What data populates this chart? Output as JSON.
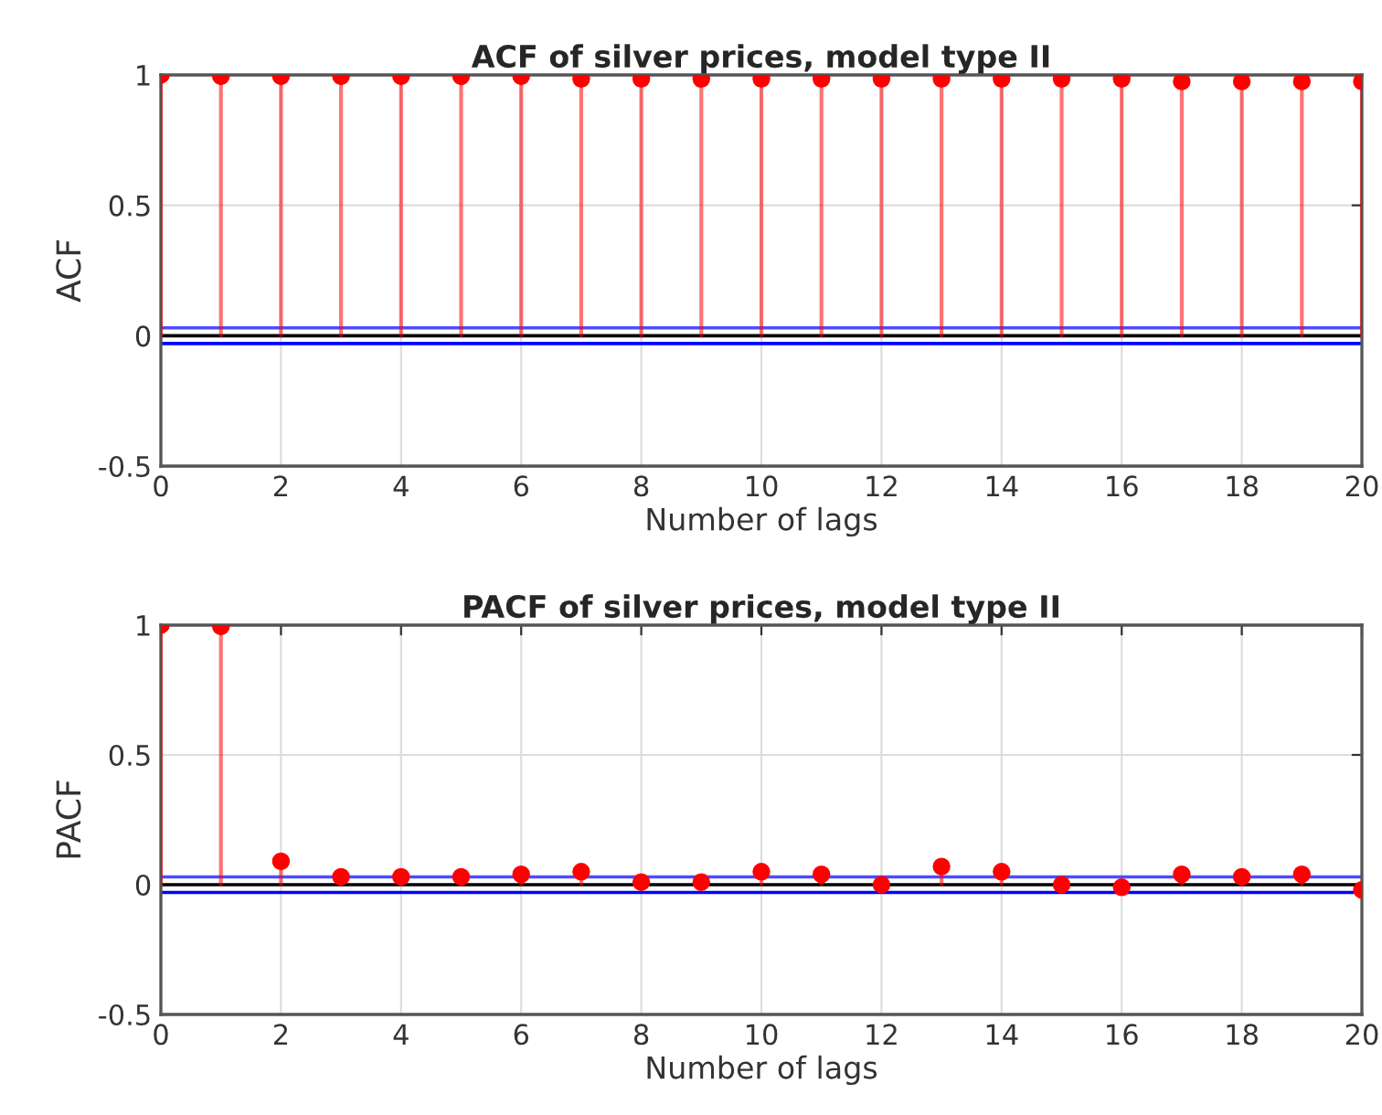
{
  "chart_data": [
    {
      "type": "lollipop",
      "title": "ACF of silver prices, model type II",
      "xlabel": "Number of lags",
      "ylabel": "ACF",
      "x": [
        0,
        1,
        2,
        3,
        4,
        5,
        6,
        7,
        8,
        9,
        10,
        11,
        12,
        13,
        14,
        15,
        16,
        17,
        18,
        19,
        20
      ],
      "series": [
        {
          "color": "#ff0000",
          "values": [
            1.0,
            0.995,
            0.995,
            0.995,
            0.995,
            0.995,
            0.995,
            0.985,
            0.985,
            0.985,
            0.985,
            0.985,
            0.985,
            0.985,
            0.985,
            0.985,
            0.985,
            0.975,
            0.975,
            0.975,
            0.975
          ]
        }
      ],
      "xlim": [
        0,
        20
      ],
      "ylim": [
        -0.5,
        1
      ],
      "xticks": [
        0,
        2,
        4,
        6,
        8,
        10,
        12,
        14,
        16,
        18,
        20
      ],
      "yticks": [
        -0.5,
        0,
        0.5,
        1
      ],
      "ref_lines": [
        {
          "axis": "y",
          "value": 0.03,
          "color": "#4d4dff"
        },
        {
          "axis": "y",
          "value": -0.03,
          "color": "#0000ff"
        },
        {
          "axis": "y",
          "value": 0,
          "color": "#000000"
        }
      ],
      "grid": true,
      "marker": "circle",
      "legend": false
    },
    {
      "type": "lollipop",
      "title": "PACF of silver prices, model type II",
      "xlabel": "Number of lags",
      "ylabel": "PACF",
      "x": [
        0,
        1,
        2,
        3,
        4,
        5,
        6,
        7,
        8,
        9,
        10,
        11,
        12,
        13,
        14,
        15,
        16,
        17,
        18,
        19,
        20
      ],
      "series": [
        {
          "color": "#ff0000",
          "values": [
            1.0,
            0.995,
            0.09,
            0.03,
            0.03,
            0.03,
            0.04,
            0.05,
            0.01,
            0.01,
            0.05,
            0.04,
            0.0,
            0.07,
            0.05,
            0.0,
            -0.01,
            0.04,
            0.03,
            0.04,
            -0.02
          ]
        }
      ],
      "xlim": [
        0,
        20
      ],
      "ylim": [
        -0.5,
        1
      ],
      "xticks": [
        0,
        2,
        4,
        6,
        8,
        10,
        12,
        14,
        16,
        18,
        20
      ],
      "yticks": [
        -0.5,
        0,
        0.5,
        1
      ],
      "ref_lines": [
        {
          "axis": "y",
          "value": 0.03,
          "color": "#4d4dff"
        },
        {
          "axis": "y",
          "value": -0.03,
          "color": "#0000ff"
        },
        {
          "axis": "y",
          "value": 0,
          "color": "#000000"
        }
      ],
      "grid": true,
      "marker": "circle",
      "legend": false
    }
  ]
}
